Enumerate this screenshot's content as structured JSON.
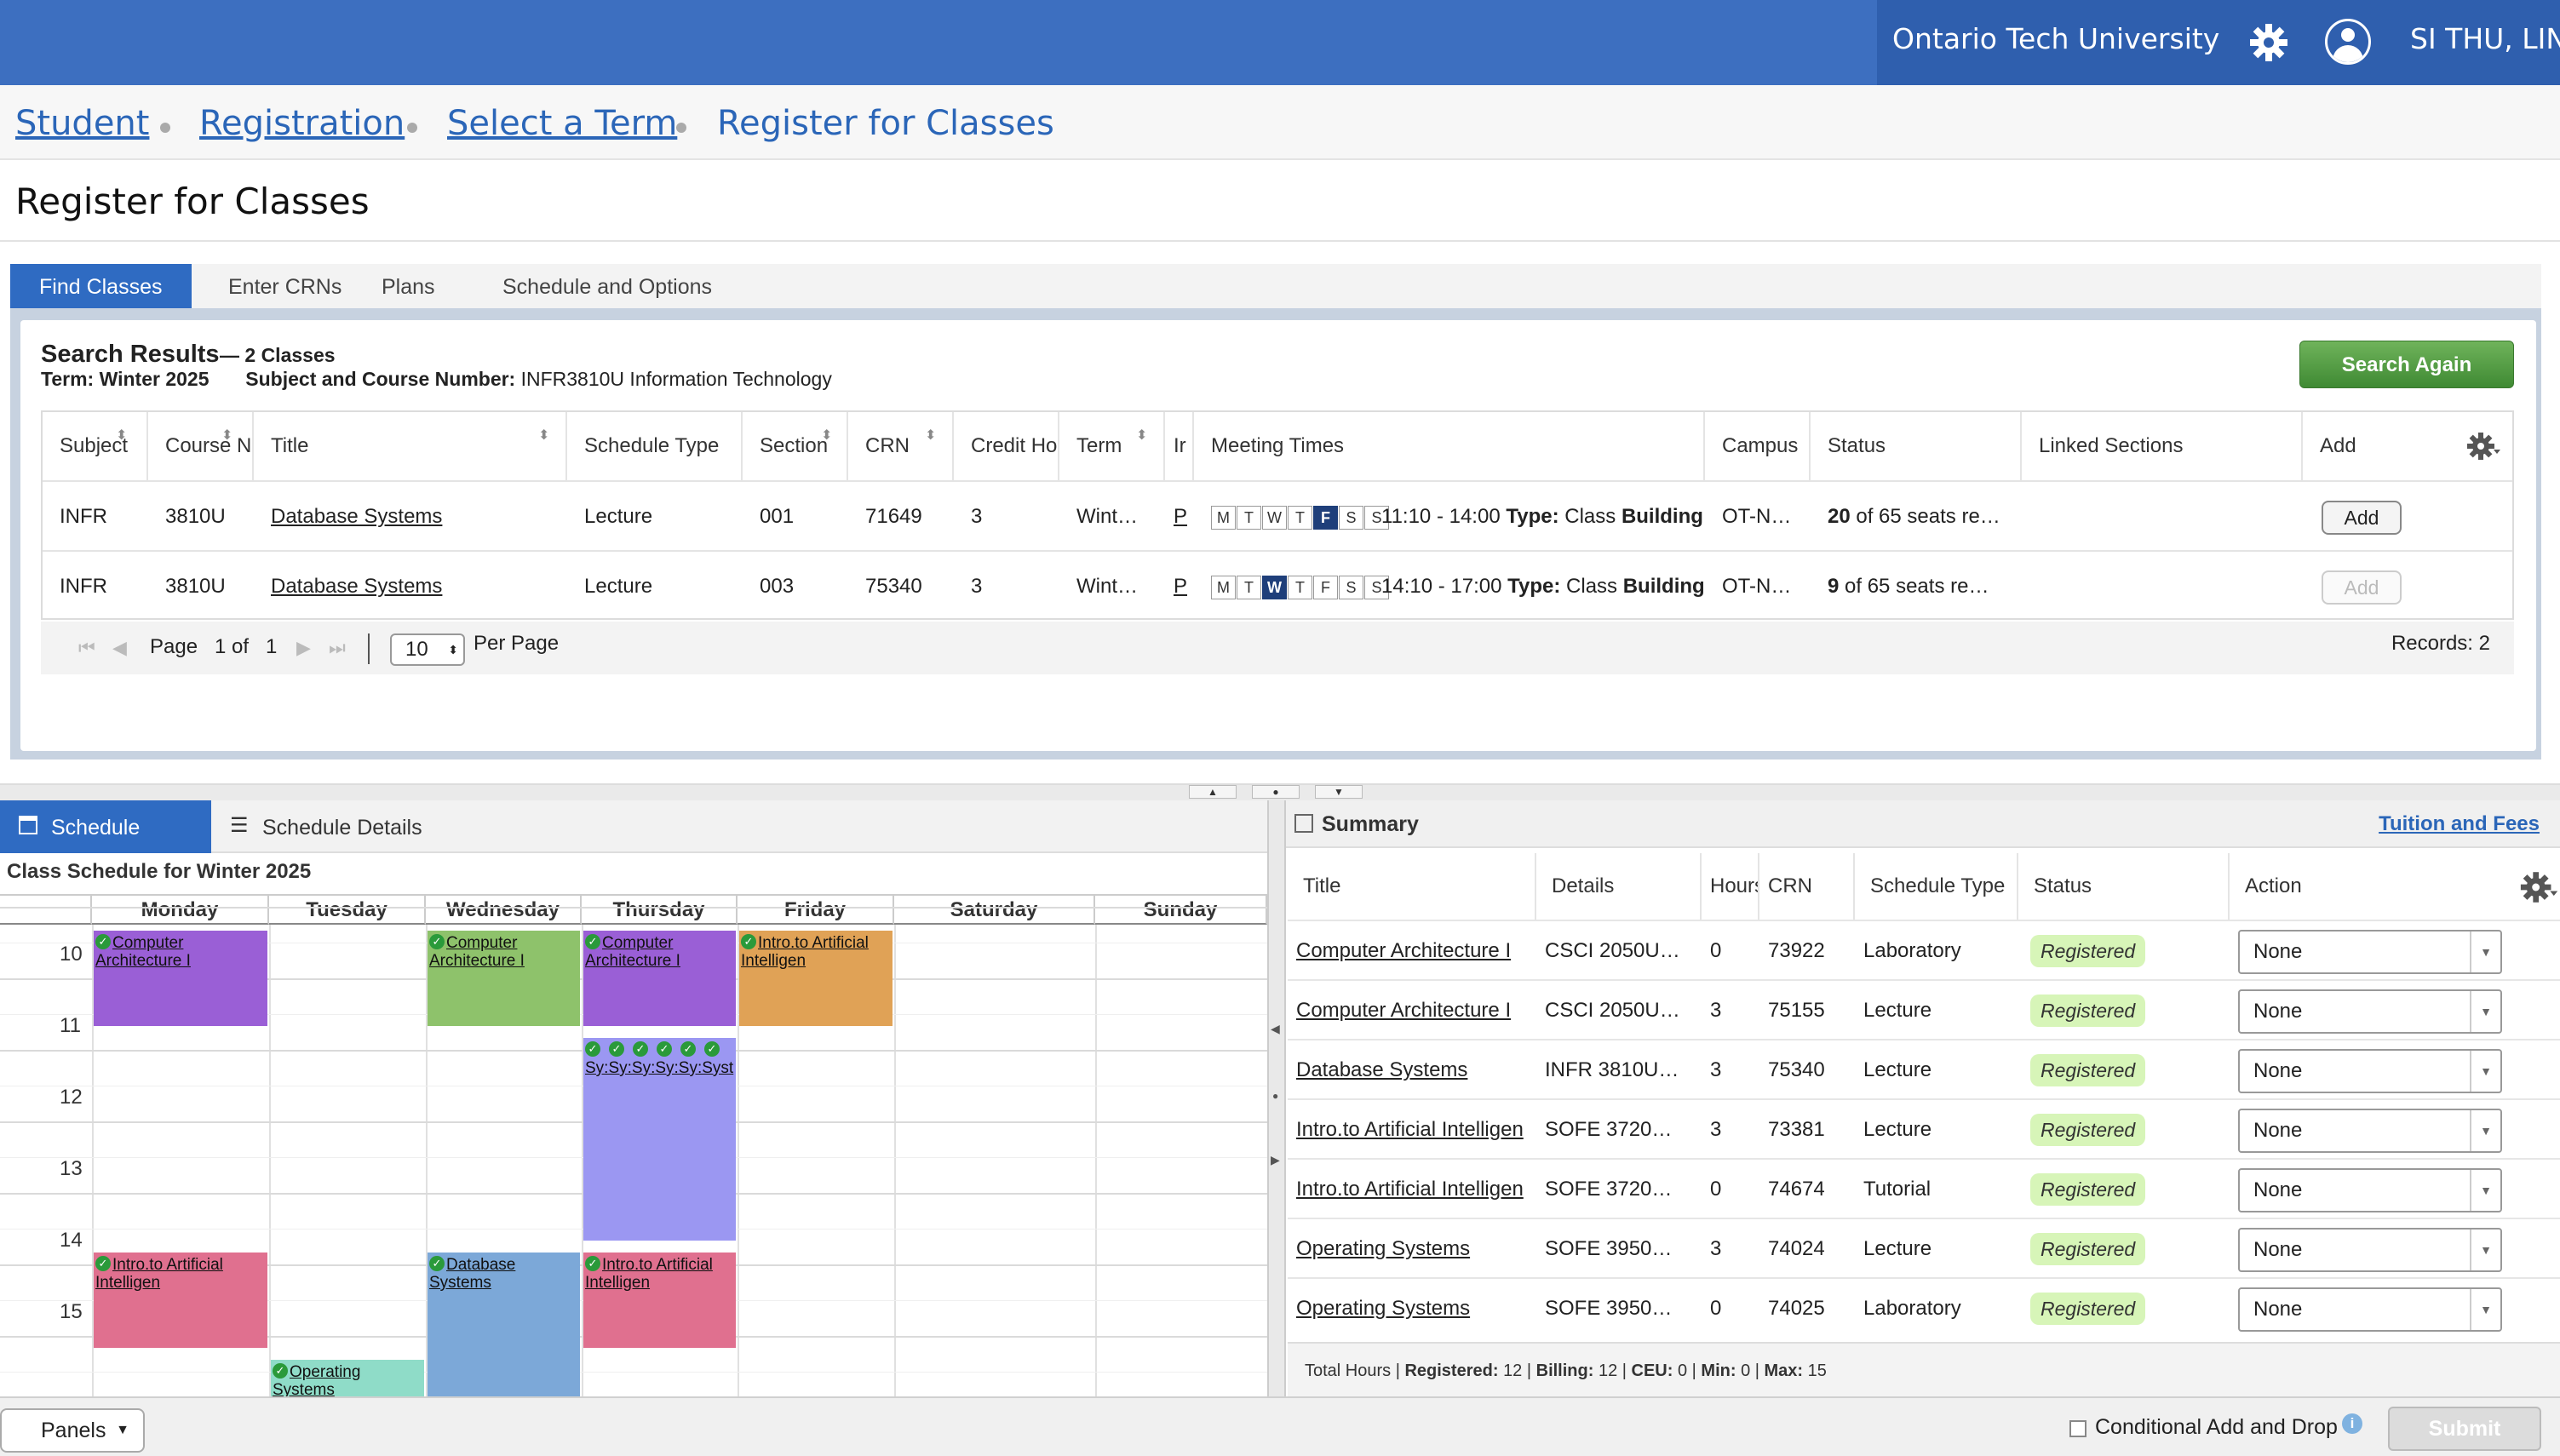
{
  "header": {
    "university": "Ontario Tech University",
    "user_name": "SI THU, LIN"
  },
  "breadcrumb": [
    "Student",
    "Registration",
    "Select a Term",
    "Register for Classes"
  ],
  "page_title": "Register for Classes",
  "tabs": [
    "Find Classes",
    "Enter CRNs",
    "Plans",
    "Schedule and Options"
  ],
  "search_results": {
    "title": "Search Results",
    "count": "— 2 Classes",
    "term_label": "Term:",
    "term_value": "Winter 2025",
    "subject_label": "Subject and Course Number:",
    "subject_value": "INFR3810U Information Technology",
    "search_again": "Search Again",
    "columns": [
      "Subject",
      "Course N",
      "Title",
      "Schedule Type",
      "Section",
      "CRN",
      "Credit Ho",
      "Term",
      "Ir",
      "Meeting Times",
      "Campus",
      "Status",
      "Linked Sections",
      "Add"
    ],
    "rows": [
      {
        "subject": "INFR",
        "course": "3810U",
        "title": "Database Systems",
        "schedule_type": "Lecture",
        "section": "001",
        "crn": "71649",
        "credit": "3",
        "term": "Wint…",
        "instructor": "P",
        "days": [
          "M",
          "T",
          "W",
          "T",
          "F",
          "S",
          "S"
        ],
        "active_day": 4,
        "time": "11:10 - 14:00",
        "type_label": "Type:",
        "type_value": "Class",
        "building": "Building",
        "campus": "OT-N…",
        "status_bold": "20",
        "status_rest": " of 65 seats re…",
        "add": "Add"
      },
      {
        "subject": "INFR",
        "course": "3810U",
        "title": "Database Systems",
        "schedule_type": "Lecture",
        "section": "003",
        "crn": "75340",
        "credit": "3",
        "term": "Wint…",
        "instructor": "P",
        "days": [
          "M",
          "T",
          "W",
          "T",
          "F",
          "S",
          "S"
        ],
        "active_day": 2,
        "time": "14:10 - 17:00",
        "type_label": "Type:",
        "type_value": "Class",
        "building": "Building",
        "campus": "OT-N…",
        "status_bold": "9",
        "status_rest": " of 65 seats re…",
        "add": "Add"
      }
    ],
    "pager": {
      "page_label": "Page",
      "page_of": "1 of",
      "total": "1",
      "per_page_value": "10",
      "per_page_label": "Per Page",
      "records": "Records: 2"
    }
  },
  "schedule": {
    "tab_schedule": "Schedule",
    "tab_details": "Schedule Details",
    "title": "Class Schedule for Winter 2025",
    "days": [
      "Monday",
      "Tuesday",
      "Wednesday",
      "Thursday",
      "Friday",
      "Saturday",
      "Sunday"
    ],
    "hours": [
      "10",
      "11",
      "12",
      "13",
      "14",
      "15"
    ],
    "events": [
      {
        "day": "Monday",
        "label": "Computer Architecture I",
        "color": "#9a5fd6",
        "start": "09:40",
        "end": "11:00"
      },
      {
        "day": "Wednesday",
        "label": "Computer Architecture I",
        "color": "#8ec26b",
        "start": "09:40",
        "end": "11:00"
      },
      {
        "day": "Thursday",
        "label": "Computer Architecture I",
        "color": "#9a5fd6",
        "start": "09:40",
        "end": "11:00"
      },
      {
        "day": "Friday",
        "label": "Intro.to Artificial Intelligen",
        "color": "#e0a256",
        "start": "09:40",
        "end": "11:00"
      },
      {
        "day": "Thursday",
        "label": "Sy:Sy:Sy:Sy:Sy:Syst",
        "color": "#9b97f2",
        "start": "11:10",
        "end": "14:00"
      },
      {
        "day": "Monday",
        "label": "Intro.to Artificial Intelligen",
        "color": "#e0708f",
        "start": "14:10",
        "end": "15:30"
      },
      {
        "day": "Wednesday",
        "label": "Database Systems",
        "color": "#7ca8d8",
        "start": "14:10",
        "end": "17:00"
      },
      {
        "day": "Thursday",
        "label": "Intro.to Artificial Intelligen",
        "color": "#e0708f",
        "start": "14:10",
        "end": "15:30"
      },
      {
        "day": "Tuesday",
        "label": "Operating Systems",
        "color": "#8fdcc8",
        "start": "15:40",
        "end": "17:00"
      }
    ]
  },
  "summary": {
    "title": "Summary",
    "tuition_link": "Tuition and Fees",
    "columns": [
      "Title",
      "Details",
      "Hours",
      "CRN",
      "Schedule Type",
      "Status",
      "Action"
    ],
    "rows": [
      {
        "title": "Computer Architecture I",
        "details": "CSCI 2050U…",
        "hours": "0",
        "crn": "73922",
        "type": "Laboratory",
        "status": "Registered",
        "action": "None"
      },
      {
        "title": "Computer Architecture I",
        "details": "CSCI 2050U…",
        "hours": "3",
        "crn": "75155",
        "type": "Lecture",
        "status": "Registered",
        "action": "None"
      },
      {
        "title": "Database Systems",
        "details": "INFR 3810U…",
        "hours": "3",
        "crn": "75340",
        "type": "Lecture",
        "status": "Registered",
        "action": "None"
      },
      {
        "title": "Intro.to Artificial Intelligen",
        "details": "SOFE 3720…",
        "hours": "3",
        "crn": "73381",
        "type": "Lecture",
        "status": "Registered",
        "action": "None"
      },
      {
        "title": "Intro.to Artificial Intelligen",
        "details": "SOFE 3720…",
        "hours": "0",
        "crn": "74674",
        "type": "Tutorial",
        "status": "Registered",
        "action": "None"
      },
      {
        "title": "Operating Systems",
        "details": "SOFE 3950…",
        "hours": "3",
        "crn": "74024",
        "type": "Lecture",
        "status": "Registered",
        "action": "None"
      },
      {
        "title": "Operating Systems",
        "details": "SOFE 3950…",
        "hours": "0",
        "crn": "74025",
        "type": "Laboratory",
        "status": "Registered",
        "action": "None"
      }
    ],
    "footer": {
      "prefix": "Total Hours | ",
      "registered_label": "Registered:",
      "registered": "12",
      "billing_label": "Billing:",
      "billing": "12",
      "ceu_label": "CEU:",
      "ceu": "0",
      "min_label": "Min:",
      "min": "0",
      "max_label": "Max:",
      "max": "15"
    }
  },
  "bottom": {
    "panels": "Panels",
    "conditional": "Conditional Add and Drop",
    "submit": "Submit"
  }
}
